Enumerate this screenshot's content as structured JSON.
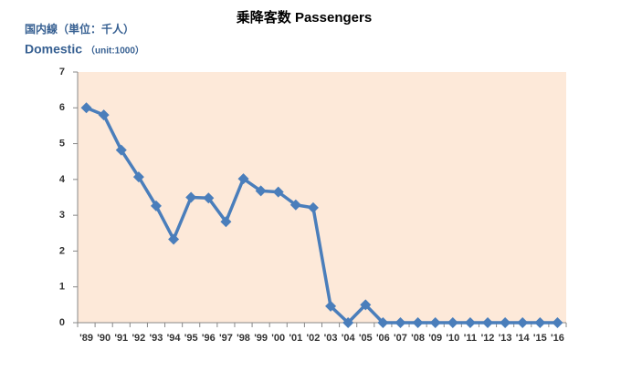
{
  "chart_data": {
    "type": "line",
    "title": "乗降客数  Passengers",
    "y_label_ja": "国内線（単位：千人）",
    "y_label_en": "Domestic",
    "y_label_unit": "（unit:1000）",
    "categories": [
      "'89",
      "'90",
      "'91",
      "'92",
      "'93",
      "'94",
      "'95",
      "'96",
      "'97",
      "'98",
      "'99",
      "'00",
      "'01",
      "'02",
      "'03",
      "'04",
      "'05",
      "'06",
      "'07",
      "'08",
      "'09",
      "'10",
      "'11",
      "'12",
      "'13",
      "'14",
      "'15",
      "'16"
    ],
    "series": [
      {
        "name": "Domestic",
        "color": "#4a7ebb",
        "values": [
          6.0,
          5.8,
          4.82,
          4.07,
          3.26,
          2.33,
          3.5,
          3.48,
          2.82,
          4.02,
          3.68,
          3.65,
          3.29,
          3.21,
          0.46,
          0,
          0.5,
          0,
          0,
          0,
          0,
          0,
          0,
          0,
          0,
          0,
          0,
          0
        ]
      }
    ],
    "ylim": [
      0,
      7
    ],
    "yticks": [
      0,
      1,
      2,
      3,
      4,
      5,
      6,
      7
    ],
    "plot_background": "#fde9d9",
    "grid": false
  }
}
